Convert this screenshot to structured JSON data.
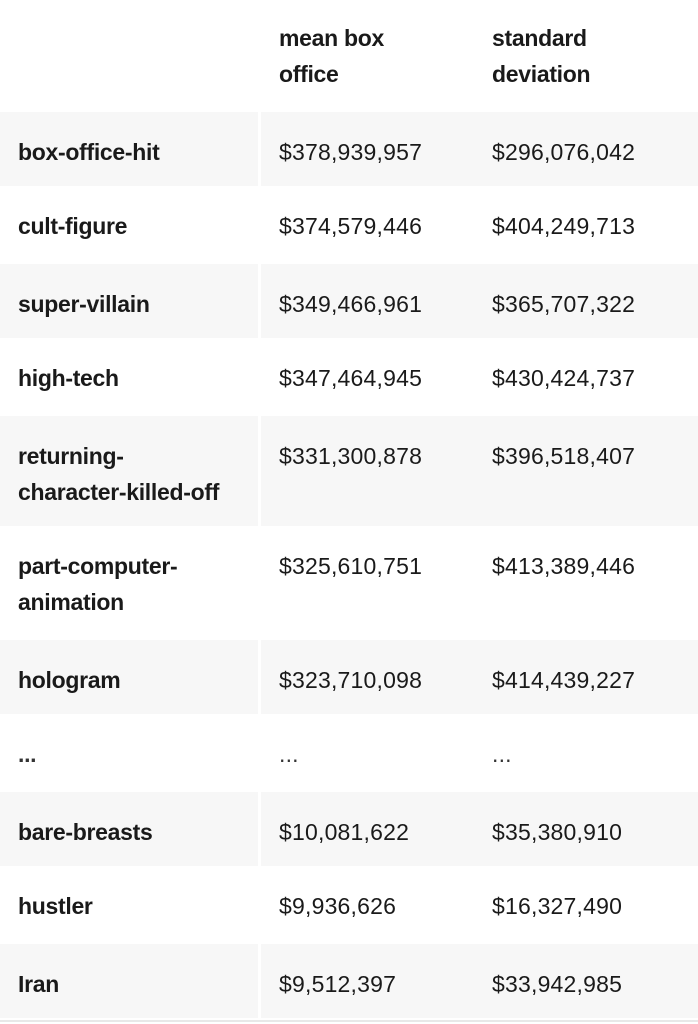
{
  "table": {
    "headers": [
      "",
      "mean box\noffice",
      "standard\ndeviation"
    ],
    "header_lines": {
      "mean": [
        "mean box",
        "office"
      ],
      "std": [
        "standard",
        "deviation"
      ]
    },
    "rows": [
      {
        "keyword_lines": [
          "box-office-hit"
        ],
        "mean": "$378,939,957",
        "std": "$296,076,042"
      },
      {
        "keyword_lines": [
          "cult-figure"
        ],
        "mean": "$374,579,446",
        "std": "$404,249,713"
      },
      {
        "keyword_lines": [
          "super-villain"
        ],
        "mean": "$349,466,961",
        "std": "$365,707,322"
      },
      {
        "keyword_lines": [
          "high-tech"
        ],
        "mean": "$347,464,945",
        "std": "$430,424,737"
      },
      {
        "keyword_lines": [
          "returning-",
          "character-killed-off"
        ],
        "mean": "$331,300,878",
        "std": "$396,518,407"
      },
      {
        "keyword_lines": [
          "part-computer-",
          "animation"
        ],
        "mean": "$325,610,751",
        "std": "$413,389,446"
      },
      {
        "keyword_lines": [
          "hologram"
        ],
        "mean": "$323,710,098",
        "std": "$414,439,227"
      },
      {
        "keyword_lines": [
          "..."
        ],
        "mean": "...",
        "std": "..."
      },
      {
        "keyword_lines": [
          "bare-breasts"
        ],
        "mean": "$10,081,622",
        "std": "$35,380,910"
      },
      {
        "keyword_lines": [
          "hustler"
        ],
        "mean": "$9,936,626",
        "std": "$16,327,490"
      },
      {
        "keyword_lines": [
          "Iran"
        ],
        "mean": "$9,512,397",
        "std": "$33,942,985"
      }
    ]
  }
}
